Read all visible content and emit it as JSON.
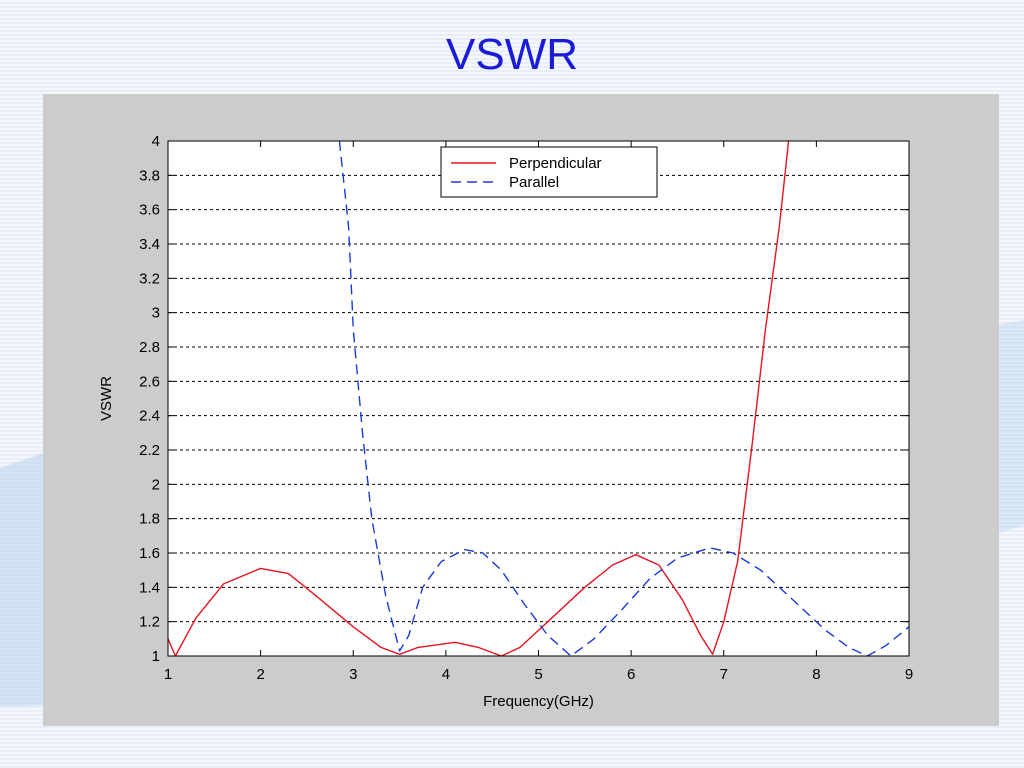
{
  "slide": {
    "title": "VSWR"
  },
  "chart_data": {
    "type": "line",
    "title": "",
    "xlabel": "Frequency(GHz)",
    "ylabel": "VSWR",
    "xlim": [
      1,
      9
    ],
    "ylim": [
      1,
      4
    ],
    "xticks": [
      1,
      2,
      3,
      4,
      5,
      6,
      7,
      8,
      9
    ],
    "yticks": [
      1,
      1.2,
      1.4,
      1.6,
      1.8,
      2,
      2.2,
      2.4,
      2.6,
      2.8,
      3,
      3.2,
      3.4,
      3.6,
      3.8,
      4
    ],
    "ytick_labels": [
      "1",
      "1.2",
      "1.4",
      "1.6",
      "1.8",
      "2",
      "2.2",
      "2.4",
      "2.6",
      "2.8",
      "3",
      "3.2",
      "3.4",
      "3.6",
      "3.8",
      "4"
    ],
    "grid": "horizontal dashed",
    "legend_position": "top-center",
    "series": [
      {
        "name": "Perpendicular",
        "color": "#e8141e",
        "style": "solid",
        "x": [
          1.0,
          1.08,
          1.3,
          1.6,
          2.0,
          2.3,
          2.6,
          3.0,
          3.3,
          3.5,
          3.7,
          4.1,
          4.35,
          4.6,
          4.8,
          5.1,
          5.5,
          5.8,
          6.05,
          6.3,
          6.55,
          6.75,
          6.88,
          7.0,
          7.15,
          7.3,
          7.45,
          7.6,
          7.7
        ],
        "y": [
          1.1,
          1.0,
          1.22,
          1.42,
          1.51,
          1.48,
          1.35,
          1.17,
          1.05,
          1.01,
          1.05,
          1.08,
          1.05,
          1.0,
          1.05,
          1.2,
          1.4,
          1.53,
          1.59,
          1.53,
          1.33,
          1.12,
          1.01,
          1.2,
          1.55,
          2.2,
          2.9,
          3.5,
          4.0
        ]
      },
      {
        "name": "Parallel",
        "color": "#1a3ad8",
        "style": "dashed",
        "x": [
          2.85,
          2.95,
          3.0,
          3.1,
          3.2,
          3.35,
          3.5,
          3.6,
          3.75,
          3.95,
          4.2,
          4.4,
          4.6,
          4.85,
          5.1,
          5.35,
          5.6,
          5.9,
          6.2,
          6.5,
          6.85,
          7.1,
          7.4,
          7.8,
          8.1,
          8.35,
          8.55,
          8.75,
          9.0
        ],
        "y": [
          4.0,
          3.5,
          2.9,
          2.3,
          1.8,
          1.35,
          1.03,
          1.12,
          1.4,
          1.55,
          1.62,
          1.6,
          1.5,
          1.3,
          1.12,
          1.0,
          1.1,
          1.27,
          1.45,
          1.57,
          1.63,
          1.6,
          1.5,
          1.3,
          1.15,
          1.05,
          1.0,
          1.06,
          1.17
        ]
      }
    ]
  }
}
